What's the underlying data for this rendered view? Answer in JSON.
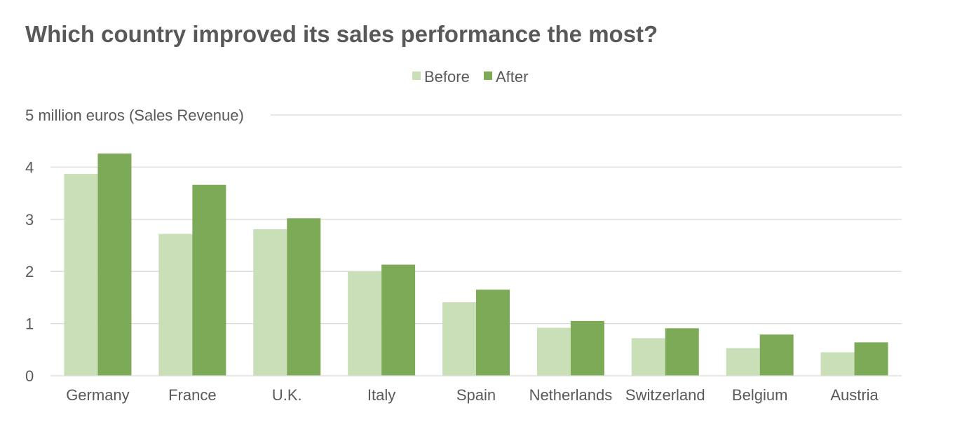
{
  "chart_data": {
    "type": "bar",
    "title": "Which country improved its sales performance the most?",
    "ylabel": "5 million euros (Sales Revenue)",
    "xlabel": "",
    "categories": [
      "Germany",
      "France",
      "U.K.",
      "Italy",
      "Spain",
      "Netherlands",
      "Switzerland",
      "Belgium",
      "Austria"
    ],
    "series": [
      {
        "name": "Before",
        "color": "#c9dfb8",
        "values": [
          3.87,
          2.72,
          2.81,
          2.0,
          1.41,
          0.92,
          0.72,
          0.53,
          0.45
        ]
      },
      {
        "name": "After",
        "color": "#7daa57",
        "values": [
          4.26,
          3.66,
          3.02,
          2.13,
          1.65,
          1.05,
          0.91,
          0.79,
          0.64
        ]
      }
    ],
    "yticks": [
      "0",
      "1",
      "2",
      "3",
      "4"
    ],
    "ylim": [
      0,
      5
    ],
    "grid": true,
    "legend_position": "top-center",
    "gridline_color": "#d9d9d9"
  }
}
